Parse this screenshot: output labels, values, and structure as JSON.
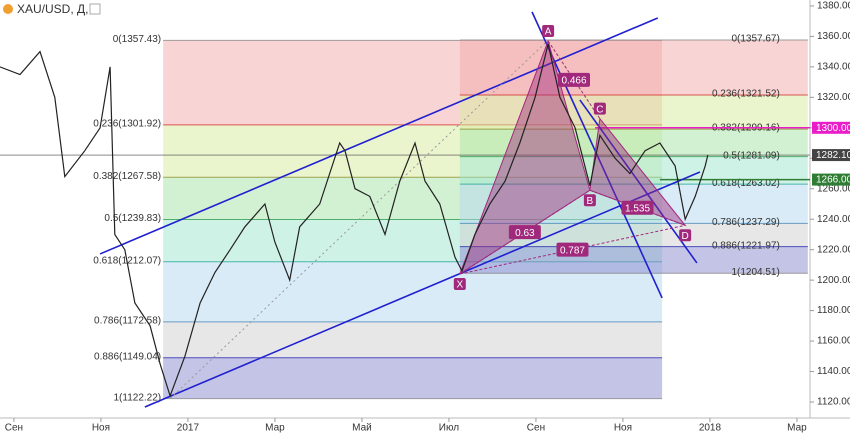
{
  "chart_data": {
    "type": "line",
    "title": "XAU/USD, Д,",
    "color": "#222222",
    "x": [
      -0.32,
      0.14,
      0.6,
      0.94,
      1.17,
      1.63,
      1.98,
      2.21,
      2.32,
      2.55,
      2.78,
      3.13,
      3.36,
      3.59,
      3.93,
      4.28,
      4.62,
      4.97,
      5.31,
      5.77,
      6,
      6.34,
      6.57,
      7.03,
      7.49,
      7.61,
      7.84,
      8.18,
      8.53,
      8.87,
      9.22,
      9.45,
      9.79,
      10.14,
      10.3,
      10.6,
      10.94,
      11.29,
      11.63,
      11.98,
      12.28,
      12.55,
      12.9,
      13.24,
      13.47,
      13.82,
      14.16,
      14.51,
      14.85,
      15.2,
      15.43,
      15.66,
      15.89,
      15.95
    ],
    "values": [
      1340,
      1335,
      1350,
      1320,
      1268,
      1285,
      1300,
      1340,
      1230,
      1220,
      1185,
      1170,
      1145,
      1124,
      1150,
      1185,
      1205,
      1220,
      1235,
      1250,
      1225,
      1200,
      1235,
      1250,
      1290,
      1285,
      1260,
      1255,
      1230,
      1265,
      1290,
      1265,
      1250,
      1215,
      1206,
      1230,
      1250,
      1265,
      1290,
      1320,
      1355,
      1320,
      1300,
      1262,
      1295,
      1280,
      1270,
      1285,
      1290,
      1275,
      1240,
      1255,
      1275,
      1282.1
    ],
    "xlim": [
      -0.32,
      18.3
    ],
    "ylim": [
      1109.5,
      1383.9
    ],
    "xticks": [
      {
        "value": 0,
        "label": "Сен"
      },
      {
        "value": 2,
        "label": "Ноя"
      },
      {
        "value": 4,
        "label": "2017"
      },
      {
        "value": 6,
        "label": "Мар"
      },
      {
        "value": 8,
        "label": "Май"
      },
      {
        "value": 10,
        "label": "Июл"
      },
      {
        "value": 12,
        "label": "Сен"
      },
      {
        "value": 14,
        "label": "Ноя"
      },
      {
        "value": 16,
        "label": "2018"
      },
      {
        "value": 18,
        "label": "Мар"
      }
    ],
    "yticks": [
      {
        "value": 1120,
        "label": "1120.00"
      },
      {
        "value": 1140,
        "label": "1140.00"
      },
      {
        "value": 1160,
        "label": "1160.00"
      },
      {
        "value": 1180,
        "label": "1180.00"
      },
      {
        "value": 1200,
        "label": "1200.00"
      },
      {
        "value": 1220,
        "label": "1220.00"
      },
      {
        "value": 1240,
        "label": "1240.00"
      },
      {
        "value": 1260,
        "label": "1260.00"
      },
      {
        "value": 1280,
        "label": "1280.00"
      },
      {
        "value": 1300,
        "label": "1300.00"
      },
      {
        "value": 1320,
        "label": "1320.00"
      },
      {
        "value": 1340,
        "label": "1340.00"
      },
      {
        "value": 1360,
        "label": "1360.00"
      },
      {
        "value": 1380,
        "label": "1380.00"
      }
    ],
    "fibs": [
      {
        "x": [
          3.43,
          14.9
        ],
        "label_side": "left",
        "levels": [
          {
            "value": 1357.43,
            "label": "0(1357.43)"
          },
          {
            "value": 1301.92,
            "label": "0.236(1301.92)"
          },
          {
            "value": 1267.58,
            "label": "0.382(1267.58)"
          },
          {
            "value": 1239.83,
            "label": "0.5(1239.83)"
          },
          {
            "value": 1212.07,
            "label": "0.618(1212.07)"
          },
          {
            "value": 1172.58,
            "label": "0.786(1172.58)"
          },
          {
            "value": 1149.04,
            "label": "0.886(1149.04)"
          },
          {
            "value": 1122.22,
            "label": "1(1122.22)"
          }
        ],
        "zone_colors": [
          "#f4a9a9",
          "#d6ec9e",
          "#a6e3a6",
          "#9fe6d0",
          "#b4d8f0",
          "#cfcfcf",
          "#8a8ad0"
        ],
        "label_colors": [
          "#888888",
          "#d32f2f",
          "#8d8d2a",
          "#2e9e4f",
          "#26a69a",
          "#4a89b8",
          "#2b2bb0",
          "#888888"
        ]
      },
      {
        "x": [
          10.25,
          18.25
        ],
        "label_side": "right",
        "levels": [
          {
            "value": 1357.67,
            "label": "0(1357.67)"
          },
          {
            "value": 1321.52,
            "label": "0.236(1321.52)"
          },
          {
            "value": 1299.16,
            "label": "0.382(1299.16)"
          },
          {
            "value": 1281.09,
            "label": "0.5(1281.09)"
          },
          {
            "value": 1263.02,
            "label": "0.618(1263.02)"
          },
          {
            "value": 1237.29,
            "label": "0.786(1237.29)"
          },
          {
            "value": 1221.97,
            "label": "0.886(1221.97)"
          },
          {
            "value": 1204.51,
            "label": "1(1204.51)"
          }
        ],
        "zone_colors": [
          "#f4a9a9",
          "#d6ec9e",
          "#a6e3a6",
          "#9fe6d0",
          "#b4d8f0",
          "#cfcfcf",
          "#8a8ad0"
        ],
        "label_colors": [
          "#888888",
          "#d32f2f",
          "#8d8d2a",
          "#2e9e4f",
          "#26a69a",
          "#4a89b8",
          "#2b2bb0",
          "#888888"
        ]
      }
    ],
    "trendlines": [
      {
        "x": [
          1.98,
          14.8
        ],
        "y": [
          1217.2,
          1372.1
        ],
        "color": "#2020d0",
        "style": "solid"
      },
      {
        "x": [
          3.01,
          15.77
        ],
        "y": [
          1116.7,
          1271.0
        ],
        "color": "#2020d0",
        "style": "solid"
      },
      {
        "x": [
          11.91,
          14.9
        ],
        "y": [
          1376.1,
          1188.3
        ],
        "color": "#2020d0",
        "style": "solid"
      },
      {
        "x": [
          13.01,
          15.7
        ],
        "y": [
          1318.3,
          1211.3
        ],
        "color": "#2020d0",
        "style": "solid"
      },
      {
        "x": [
          3.59,
          12.28
        ],
        "y": [
          1122.22,
          1357.43
        ],
        "color": "#999999",
        "style": "dotted"
      }
    ],
    "pattern": {
      "labels": [
        "X",
        "A",
        "B",
        "C",
        "D"
      ],
      "x": [
        10.25,
        12.28,
        13.24,
        13.47,
        15.43
      ],
      "y": [
        1204,
        1357,
        1259,
        1306,
        1236
      ],
      "ratios": [
        0.466,
        0.63,
        1.535,
        0.787
      ],
      "color": "#a0297c"
    },
    "price_lines": [
      {
        "value": 1300,
        "label": "1300.00",
        "color": "#e91ec8",
        "x_start": 13.36
      },
      {
        "value": 1282.1,
        "label": "1282.10",
        "color": "#444444"
      },
      {
        "value": 1266,
        "label": "1266.00",
        "color": "#2e7d32",
        "x_start": 14.85
      }
    ]
  }
}
